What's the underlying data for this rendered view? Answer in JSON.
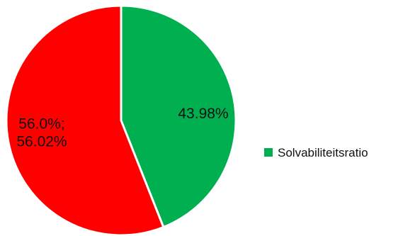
{
  "chart_data": {
    "type": "pie",
    "title": "",
    "slices": [
      {
        "value": 43.98,
        "label_lines": [
          "43.98%"
        ],
        "color": "#00b050"
      },
      {
        "value": 56.02,
        "label_lines": [
          "56.0%;",
          "56.02%"
        ],
        "color": "#ff0000"
      }
    ],
    "start_angle_deg": 0,
    "direction": "clockwise",
    "legend": {
      "placement": "right",
      "entries": [
        {
          "name": "Solvabiliteitsratio",
          "color": "#00b050"
        }
      ]
    }
  }
}
